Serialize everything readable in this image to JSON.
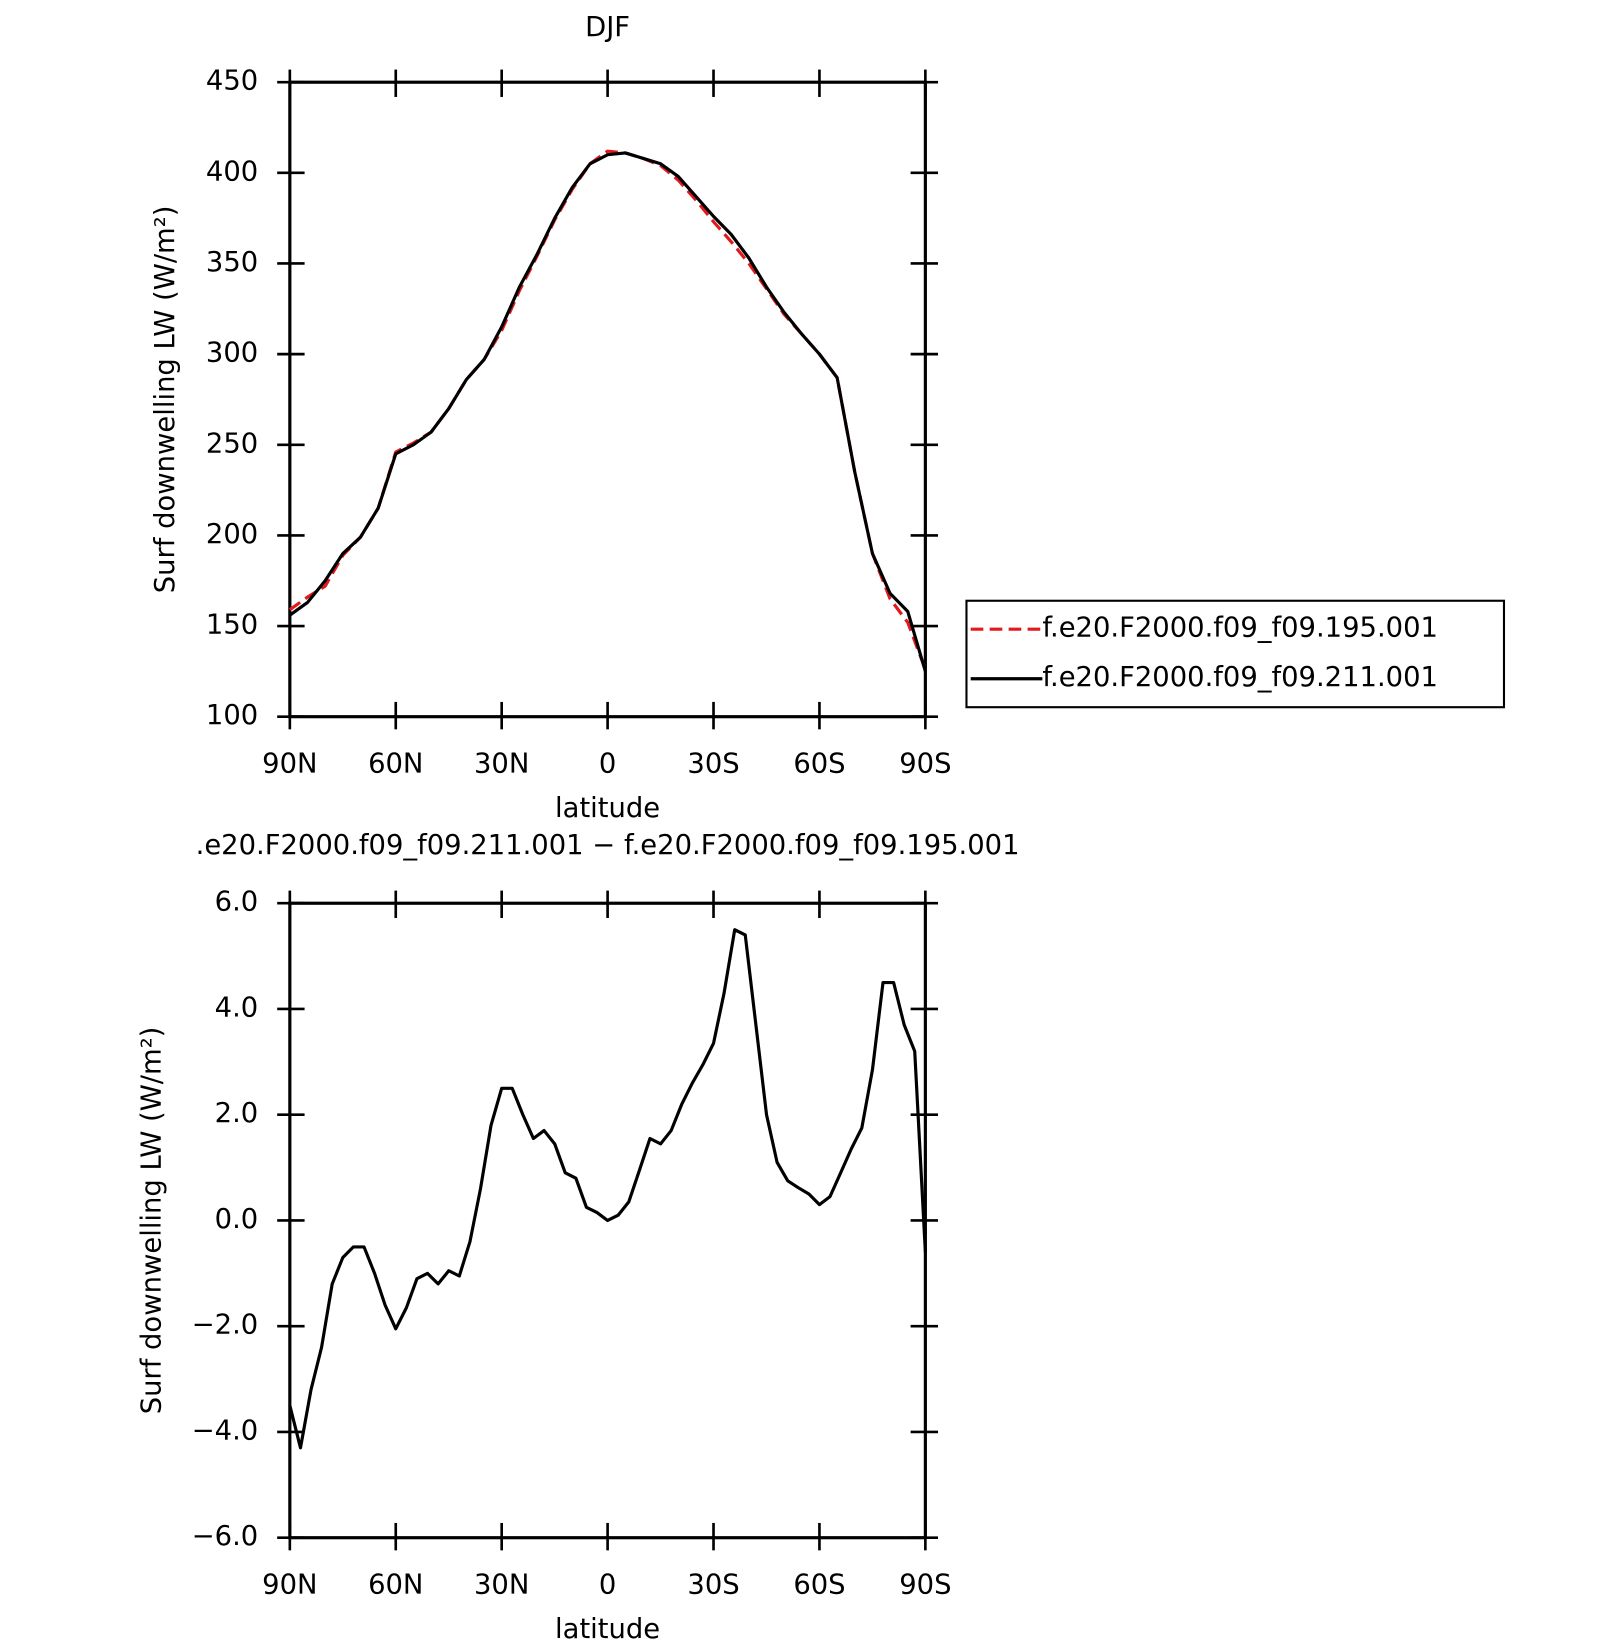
{
  "chart_data": [
    {
      "type": "line",
      "title": "DJF",
      "xlabel": "latitude",
      "ylabel": "Surf downwelling LW (W/m²)",
      "x": [
        90,
        85,
        80,
        75,
        70,
        65,
        60,
        55,
        50,
        45,
        40,
        35,
        30,
        25,
        20,
        15,
        10,
        5,
        0,
        -5,
        -10,
        -15,
        -20,
        -25,
        -30,
        -35,
        -40,
        -45,
        -50,
        -55,
        -60,
        -65,
        -70,
        -75,
        -80,
        -85,
        -90
      ],
      "series": [
        {
          "name": "f.e20.F2000.f09_f09.195.001",
          "color": "#e31a1c",
          "linestyle": "dashed",
          "values": [
            159,
            166,
            172,
            189,
            199,
            215,
            246,
            251,
            257,
            270,
            286,
            297,
            313,
            335,
            354,
            374,
            391,
            405,
            412,
            411,
            408,
            404,
            396,
            385,
            373,
            362,
            350,
            336,
            322,
            311,
            300,
            287,
            235,
            190,
            165,
            152,
            126
          ]
        },
        {
          "name": "f.e20.F2000.f09_f09.211.001",
          "color": "#000000",
          "linestyle": "solid",
          "values": [
            156,
            163,
            175,
            190,
            199,
            215,
            245,
            250,
            257,
            270,
            286,
            297,
            315,
            337,
            355,
            375,
            392,
            405,
            410,
            411,
            408,
            405,
            398,
            387,
            376,
            366,
            353,
            337,
            323,
            311,
            300,
            287,
            235,
            190,
            168,
            158,
            125
          ]
        }
      ],
      "xlim": [
        90,
        -90
      ],
      "xticks": [
        {
          "value": 90,
          "label": "90N"
        },
        {
          "value": 60,
          "label": "60N"
        },
        {
          "value": 30,
          "label": "30N"
        },
        0,
        {
          "value": -30,
          "label": "30S"
        },
        {
          "value": -60,
          "label": "60S"
        },
        {
          "value": -90,
          "label": "90S"
        }
      ],
      "ylim": [
        100,
        450
      ],
      "yticks": [
        100,
        150,
        200,
        250,
        300,
        350,
        400,
        450
      ],
      "legend": "right"
    },
    {
      "type": "line",
      "title": ".e20.F2000.f09_f09.211.001 − f.e20.F2000.f09_f09.195.001",
      "xlabel": "latitude",
      "ylabel": "Surf downwelling LW (W/m²)",
      "x": [
        90,
        87,
        84,
        81,
        78,
        75,
        72,
        69,
        66,
        63,
        60,
        57,
        54,
        51,
        48,
        45,
        42,
        39,
        36,
        33,
        30,
        27,
        24,
        21,
        18,
        15,
        12,
        9,
        6,
        3,
        0,
        -3,
        -6,
        -9,
        -12,
        -15,
        -18,
        -21,
        -24,
        -27,
        -30,
        -33,
        -36,
        -39,
        -42,
        -45,
        -48,
        -51,
        -54,
        -57,
        -60,
        -63,
        -66,
        -69,
        -72,
        -75,
        -78,
        -81,
        -84,
        -87,
        -90
      ],
      "series": [
        {
          "color": "#000000",
          "linestyle": "solid",
          "values": [
            -3.5,
            -4.3,
            -3.2,
            -2.4,
            -1.2,
            -0.7,
            -0.5,
            -0.5,
            -1.0,
            -1.6,
            -2.05,
            -1.65,
            -1.1,
            -1.0,
            -1.2,
            -0.95,
            -1.05,
            -0.4,
            0.6,
            1.8,
            2.5,
            2.5,
            2.0,
            1.55,
            1.7,
            1.45,
            0.9,
            0.8,
            0.25,
            0.15,
            0.0,
            0.1,
            0.35,
            0.95,
            1.55,
            1.45,
            1.7,
            2.2,
            2.6,
            2.95,
            3.35,
            4.3,
            5.5,
            5.4,
            3.7,
            2.0,
            1.1,
            0.75,
            0.62,
            0.5,
            0.3,
            0.45,
            0.9,
            1.35,
            1.75,
            2.85,
            4.5,
            4.5,
            3.7,
            3.2,
            -0.6
          ]
        }
      ],
      "xlim": [
        90,
        -90
      ],
      "xticks": [
        {
          "value": 90,
          "label": "90N"
        },
        {
          "value": 60,
          "label": "60N"
        },
        {
          "value": 30,
          "label": "30N"
        },
        0,
        {
          "value": -30,
          "label": "30S"
        },
        {
          "value": -60,
          "label": "60S"
        },
        {
          "value": -90,
          "label": "90S"
        }
      ],
      "ylim": [
        -6,
        6
      ],
      "yticks": [
        {
          "value": -6,
          "label": "−6.0"
        },
        {
          "value": -4,
          "label": "−4.0"
        },
        {
          "value": -2,
          "label": "−2.0"
        },
        {
          "value": 0,
          "label": "0.0"
        },
        {
          "value": 2,
          "label": "2.0"
        },
        {
          "value": 4,
          "label": "4.0"
        },
        {
          "value": 6,
          "label": "6.0"
        }
      ]
    }
  ]
}
